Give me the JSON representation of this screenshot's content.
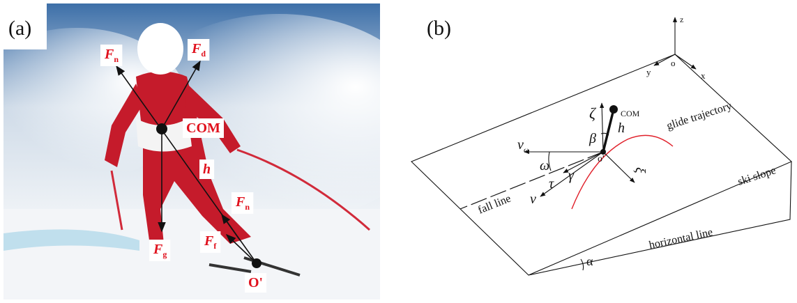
{
  "panel_a": {
    "label": "(a)",
    "annotations": [
      {
        "symbol": "F",
        "sub": "n"
      },
      {
        "symbol": "F",
        "sub": "d"
      },
      {
        "symbol": "COM"
      },
      {
        "symbol": "h"
      },
      {
        "symbol": "F",
        "sub": "n"
      },
      {
        "symbol": "F",
        "sub": "g"
      },
      {
        "symbol": "F",
        "sub": "f"
      },
      {
        "symbol": "O'"
      }
    ]
  },
  "panel_b": {
    "label": "(b)",
    "annotations": [
      {
        "symbol": "z"
      },
      {
        "symbol": "o"
      },
      {
        "symbol": "y"
      },
      {
        "symbol": "x"
      },
      {
        "symbol": "ζ"
      },
      {
        "symbol": "COM"
      },
      {
        "symbol": "h"
      },
      {
        "symbol": "β"
      },
      {
        "symbol": "v",
        "sub": "ω"
      },
      {
        "symbol": "ω"
      },
      {
        "symbol": "o'"
      },
      {
        "symbol": "γ"
      },
      {
        "symbol": "τ"
      },
      {
        "symbol": "ν"
      },
      {
        "symbol": "ξ"
      },
      {
        "symbol": "glide trajectory"
      },
      {
        "symbol": "ski slope"
      },
      {
        "symbol": "fall line"
      },
      {
        "symbol": "horizontal line"
      },
      {
        "symbol": "α"
      }
    ]
  }
}
